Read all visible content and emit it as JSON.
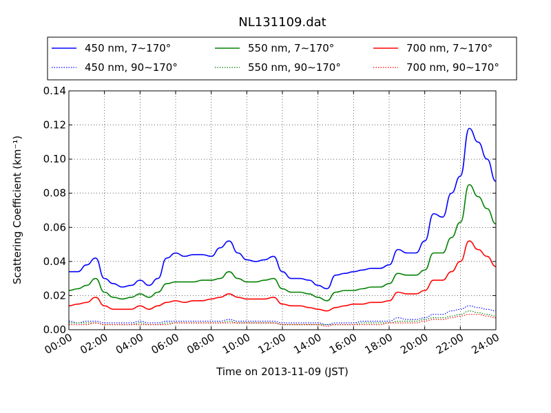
{
  "chart_data": {
    "type": "line",
    "title": "NL131109.dat",
    "xlabel": "Time on 2013-11-09 (JST)",
    "ylabel": "Scattering Coefficient (km⁻¹)",
    "xlim": [
      "00:00",
      "24:00"
    ],
    "ylim": [
      0.0,
      0.14
    ],
    "x_ticks": [
      "00:00",
      "02:00",
      "04:00",
      "06:00",
      "08:00",
      "10:00",
      "12:00",
      "14:00",
      "16:00",
      "18:00",
      "20:00",
      "22:00",
      "24:00"
    ],
    "y_ticks": [
      "0.00",
      "0.02",
      "0.04",
      "0.06",
      "0.08",
      "0.10",
      "0.12",
      "0.14"
    ],
    "grid": true,
    "legend_position": "top, above plot",
    "x": [
      "00:00",
      "00:30",
      "01:00",
      "01:30",
      "02:00",
      "02:30",
      "03:00",
      "03:30",
      "04:00",
      "04:30",
      "05:00",
      "05:30",
      "06:00",
      "06:30",
      "07:00",
      "07:30",
      "08:00",
      "08:30",
      "09:00",
      "09:30",
      "10:00",
      "10:30",
      "11:00",
      "11:30",
      "12:00",
      "12:30",
      "13:00",
      "13:30",
      "14:00",
      "14:30",
      "15:00",
      "15:30",
      "16:00",
      "16:30",
      "17:00",
      "17:30",
      "18:00",
      "18:30",
      "19:00",
      "19:30",
      "20:00",
      "20:30",
      "21:00",
      "21:30",
      "22:00",
      "22:30",
      "23:00",
      "23:30",
      "24:00"
    ],
    "series": [
      {
        "name": "450 nm, 7∼170°",
        "color": "#0000ff",
        "style": "solid",
        "values": [
          0.034,
          0.034,
          0.038,
          0.042,
          0.03,
          0.027,
          0.025,
          0.026,
          0.029,
          0.026,
          0.03,
          0.042,
          0.045,
          0.043,
          0.044,
          0.044,
          0.043,
          0.048,
          0.052,
          0.045,
          0.041,
          0.04,
          0.041,
          0.043,
          0.034,
          0.03,
          0.03,
          0.029,
          0.026,
          0.024,
          0.032,
          0.033,
          0.034,
          0.035,
          0.036,
          0.036,
          0.038,
          0.047,
          0.045,
          0.045,
          0.052,
          0.068,
          0.066,
          0.08,
          0.09,
          0.118,
          0.11,
          0.1,
          0.087
        ]
      },
      {
        "name": "450 nm, 90∼170°",
        "color": "#0000ff",
        "style": "dotted",
        "values": [
          0.005,
          0.004,
          0.005,
          0.005,
          0.004,
          0.004,
          0.004,
          0.004,
          0.005,
          0.004,
          0.004,
          0.005,
          0.005,
          0.005,
          0.005,
          0.005,
          0.005,
          0.005,
          0.006,
          0.005,
          0.005,
          0.005,
          0.005,
          0.005,
          0.004,
          0.004,
          0.004,
          0.004,
          0.004,
          0.003,
          0.004,
          0.004,
          0.004,
          0.005,
          0.005,
          0.005,
          0.005,
          0.007,
          0.006,
          0.006,
          0.007,
          0.009,
          0.009,
          0.011,
          0.012,
          0.014,
          0.013,
          0.012,
          0.011
        ]
      },
      {
        "name": "550 nm, 7∼170°",
        "color": "#008000",
        "style": "solid",
        "values": [
          0.023,
          0.024,
          0.026,
          0.03,
          0.022,
          0.019,
          0.018,
          0.019,
          0.021,
          0.019,
          0.022,
          0.027,
          0.028,
          0.028,
          0.028,
          0.029,
          0.029,
          0.03,
          0.034,
          0.03,
          0.028,
          0.028,
          0.029,
          0.03,
          0.024,
          0.022,
          0.022,
          0.021,
          0.019,
          0.017,
          0.022,
          0.023,
          0.023,
          0.024,
          0.025,
          0.025,
          0.027,
          0.033,
          0.032,
          0.032,
          0.035,
          0.045,
          0.045,
          0.054,
          0.063,
          0.085,
          0.078,
          0.071,
          0.062
        ]
      },
      {
        "name": "550 nm, 90∼170°",
        "color": "#008000",
        "style": "dotted",
        "values": [
          0.004,
          0.004,
          0.004,
          0.004,
          0.003,
          0.003,
          0.003,
          0.003,
          0.004,
          0.003,
          0.003,
          0.004,
          0.004,
          0.004,
          0.004,
          0.004,
          0.004,
          0.004,
          0.005,
          0.004,
          0.004,
          0.004,
          0.004,
          0.004,
          0.003,
          0.003,
          0.003,
          0.003,
          0.003,
          0.003,
          0.003,
          0.003,
          0.003,
          0.004,
          0.004,
          0.004,
          0.004,
          0.005,
          0.005,
          0.005,
          0.006,
          0.007,
          0.007,
          0.008,
          0.009,
          0.011,
          0.01,
          0.009,
          0.008
        ]
      },
      {
        "name": "700 nm, 7∼170°",
        "color": "#ff0000",
        "style": "solid",
        "values": [
          0.014,
          0.015,
          0.016,
          0.019,
          0.014,
          0.012,
          0.012,
          0.012,
          0.014,
          0.012,
          0.014,
          0.016,
          0.017,
          0.016,
          0.017,
          0.017,
          0.018,
          0.019,
          0.021,
          0.019,
          0.018,
          0.018,
          0.018,
          0.019,
          0.015,
          0.014,
          0.014,
          0.013,
          0.012,
          0.011,
          0.013,
          0.014,
          0.015,
          0.015,
          0.016,
          0.016,
          0.017,
          0.022,
          0.021,
          0.021,
          0.023,
          0.029,
          0.029,
          0.034,
          0.04,
          0.052,
          0.047,
          0.043,
          0.037
        ]
      },
      {
        "name": "700 nm, 90∼170°",
        "color": "#ff0000",
        "style": "dotted",
        "values": [
          0.003,
          0.003,
          0.003,
          0.004,
          0.003,
          0.003,
          0.003,
          0.003,
          0.003,
          0.003,
          0.003,
          0.003,
          0.004,
          0.004,
          0.004,
          0.004,
          0.004,
          0.004,
          0.004,
          0.004,
          0.004,
          0.004,
          0.004,
          0.004,
          0.003,
          0.003,
          0.003,
          0.003,
          0.003,
          0.002,
          0.003,
          0.003,
          0.003,
          0.003,
          0.003,
          0.003,
          0.004,
          0.004,
          0.004,
          0.004,
          0.005,
          0.006,
          0.006,
          0.007,
          0.008,
          0.009,
          0.009,
          0.008,
          0.007
        ]
      }
    ]
  }
}
